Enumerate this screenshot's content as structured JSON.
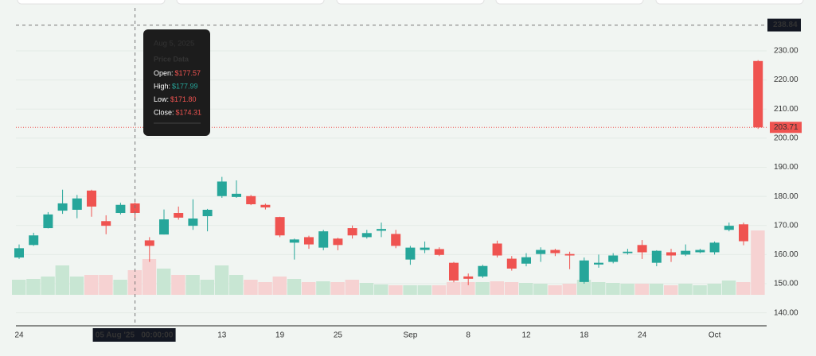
{
  "chart_data": {
    "type": "candlestick",
    "up_color": "#26a69a",
    "down_color": "#ef5350",
    "up_volume_color": "#c8e6d3",
    "down_volume_color": "#f6d2d2",
    "categories": [
      "2025-07-24",
      "2025-07-25",
      "2025-07-28",
      "2025-07-29",
      "2025-07-30",
      "2025-07-31",
      "2025-08-01",
      "2025-08-04",
      "2025-08-05",
      "2025-08-06",
      "2025-08-07",
      "2025-08-08",
      "2025-08-11",
      "2025-08-12",
      "2025-08-13",
      "2025-08-14",
      "2025-08-15",
      "2025-08-18",
      "2025-08-19",
      "2025-08-20",
      "2025-08-21",
      "2025-08-22",
      "2025-08-25",
      "2025-08-26",
      "2025-08-27",
      "2025-08-28",
      "2025-08-29",
      "2025-09-02",
      "2025-09-03",
      "2025-09-04",
      "2025-09-05",
      "2025-09-08",
      "2025-09-09",
      "2025-09-10",
      "2025-09-11",
      "2025-09-12",
      "2025-09-15",
      "2025-09-16",
      "2025-09-17",
      "2025-09-18",
      "2025-09-19",
      "2025-09-22",
      "2025-09-23",
      "2025-09-24",
      "2025-09-25",
      "2025-09-26",
      "2025-09-29",
      "2025-09-30",
      "2025-10-01",
      "2025-10-02",
      "2025-10-03",
      "2025-10-06"
    ],
    "open": [
      159.0,
      163.3,
      169.1,
      175.1,
      175.4,
      182.0,
      171.5,
      174.3,
      177.57,
      164.9,
      166.9,
      174.3,
      169.9,
      173.2,
      180.1,
      179.8,
      180.1,
      177.1,
      172.9,
      164.1,
      166.0,
      162.4,
      165.5,
      169.1,
      166.0,
      168.2,
      167.1,
      158.3,
      161.6,
      161.9,
      157.2,
      152.5,
      152.5,
      163.8,
      158.6,
      156.9,
      160.2,
      161.6,
      160.2,
      150.6,
      156.6,
      157.5,
      160.5,
      163.3,
      157.2,
      160.8,
      160.0,
      160.8,
      160.8,
      168.5,
      170.4,
      226.5
    ],
    "high": [
      163.5,
      167.5,
      174.6,
      182.3,
      180.5,
      182.3,
      173.5,
      177.8,
      177.99,
      166.0,
      175.5,
      176.5,
      179.0,
      175.7,
      186.7,
      185.5,
      180.5,
      177.5,
      173.0,
      165.5,
      166.5,
      168.5,
      165.8,
      170.0,
      168.5,
      171.0,
      168.5,
      163.0,
      164.5,
      162.5,
      157.5,
      153.5,
      156.5,
      164.8,
      159.5,
      160.5,
      162.5,
      162.0,
      161.0,
      159.0,
      160.0,
      160.5,
      162.0,
      165.0,
      161.5,
      162.0,
      163.5,
      162.0,
      164.5,
      171.0,
      171.0,
      226.8
    ],
    "low": [
      158.5,
      163.0,
      169.0,
      174.0,
      172.5,
      173.0,
      167.0,
      173.8,
      171.8,
      157.5,
      166.9,
      172.0,
      168.5,
      168.0,
      179.5,
      179.5,
      177.0,
      175.5,
      166.0,
      158.3,
      162.0,
      161.5,
      161.5,
      165.5,
      165.5,
      166.0,
      162.2,
      156.5,
      160.5,
      159.5,
      150.5,
      149.5,
      152.0,
      159.0,
      154.5,
      156.0,
      157.5,
      159.5,
      155.0,
      150.0,
      155.5,
      157.0,
      160.0,
      158.5,
      156.0,
      157.5,
      159.5,
      160.5,
      160.0,
      168.0,
      163.2,
      203.2
    ],
    "close": [
      162.2,
      166.6,
      173.8,
      177.6,
      179.3,
      176.5,
      169.9,
      177.1,
      174.31,
      163.0,
      172.1,
      172.7,
      172.4,
      175.4,
      185.1,
      180.9,
      177.3,
      176.2,
      166.6,
      165.2,
      163.5,
      168.0,
      163.3,
      166.6,
      167.4,
      168.8,
      163.0,
      162.4,
      162.4,
      159.9,
      151.1,
      151.7,
      156.1,
      159.7,
      155.2,
      159.1,
      161.6,
      160.5,
      159.7,
      158.0,
      157.2,
      159.7,
      161.0,
      160.8,
      161.3,
      159.7,
      161.3,
      161.6,
      164.1,
      169.9,
      164.6,
      203.71
    ],
    "volume": [
      19,
      20,
      23,
      37,
      23,
      25,
      25,
      19,
      31,
      45,
      33,
      25,
      25,
      19,
      37,
      25,
      19,
      16,
      23,
      20,
      16,
      17,
      16,
      19,
      15,
      13,
      12,
      12,
      12,
      12,
      16,
      16,
      16,
      17,
      16,
      15,
      14,
      12,
      14,
      19,
      16,
      15,
      14,
      14,
      14,
      12,
      14,
      12,
      14,
      18,
      16,
      81
    ],
    "ylim": [
      135,
      245
    ],
    "yticks": [
      {
        "value": 140,
        "label": "140.00"
      },
      {
        "value": 150,
        "label": "150.00"
      },
      {
        "value": 160,
        "label": "160.00"
      },
      {
        "value": 170,
        "label": "170.00"
      },
      {
        "value": 180,
        "label": "180.00"
      },
      {
        "value": 190,
        "label": "190.00"
      },
      {
        "value": 200,
        "label": "200.00"
      },
      {
        "value": 210,
        "label": "210.00"
      },
      {
        "value": 220,
        "label": "220.00"
      },
      {
        "value": 230,
        "label": "230.00"
      }
    ],
    "xticks": [
      {
        "value": "2025-07-24",
        "label": "24"
      },
      {
        "value": "2025-08-13",
        "label": "13"
      },
      {
        "value": "2025-08-19",
        "label": "19"
      },
      {
        "value": "2025-08-25",
        "label": "25"
      },
      {
        "value": "2025-09-02",
        "label": "Sep"
      },
      {
        "value": "2025-09-08",
        "label": "8"
      },
      {
        "value": "2025-09-12",
        "label": "12"
      },
      {
        "value": "2025-09-18",
        "label": "18"
      },
      {
        "value": "2025-09-24",
        "label": "24"
      },
      {
        "value": "2025-10-01",
        "label": "Oct"
      }
    ],
    "last_price": {
      "value": 203.71,
      "label": "203.71"
    },
    "crosshair": {
      "category": "2025-08-05",
      "x_label": "05 Aug '25   00:00:00",
      "y": {
        "value": 238.84,
        "label": "238.84"
      }
    },
    "tooltip": {
      "date": "Aug 5, 2025",
      "heading": "Price Data",
      "rows": [
        {
          "label": "Open:",
          "value": "$177.57",
          "color": "#ef5350"
        },
        {
          "label": "High:",
          "value": "$177.99",
          "color": "#26a69a"
        },
        {
          "label": "Low:",
          "value": "$171.80",
          "color": "#ef5350"
        },
        {
          "label": "Close:",
          "value": "$174.31",
          "color": "#ef5350"
        }
      ]
    }
  }
}
